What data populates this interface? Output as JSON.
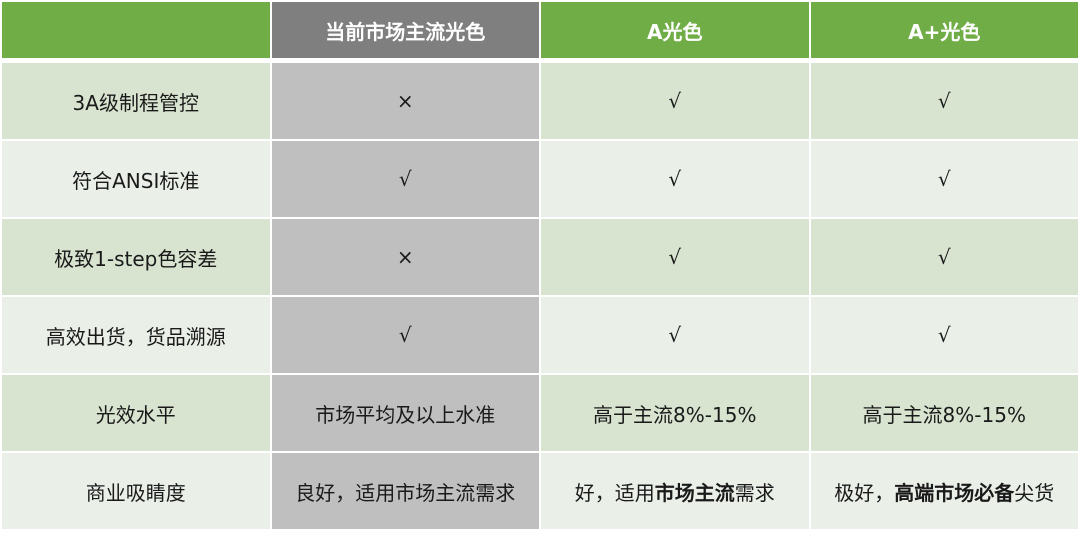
{
  "header": [
    "",
    "当前市场主流光色",
    "A光色",
    "A+光色"
  ],
  "colors": {
    "header_green": "#70AD47",
    "header_gray": "#7F7F7F",
    "row_odd": "#D8E4D0",
    "row_even": "#EAEFE8",
    "gray_column": "#BFBFBF"
  },
  "rows": [
    {
      "label": "3A级制程管控",
      "cells": [
        {
          "pre": "×",
          "bold": "",
          "post": ""
        },
        {
          "pre": "√",
          "bold": "",
          "post": ""
        },
        {
          "pre": "√",
          "bold": "",
          "post": ""
        }
      ]
    },
    {
      "label": "符合ANSI标准",
      "cells": [
        {
          "pre": "√",
          "bold": "",
          "post": ""
        },
        {
          "pre": "√",
          "bold": "",
          "post": ""
        },
        {
          "pre": "√",
          "bold": "",
          "post": ""
        }
      ]
    },
    {
      "label": "极致1-step色容差",
      "cells": [
        {
          "pre": "×",
          "bold": "",
          "post": ""
        },
        {
          "pre": "√",
          "bold": "",
          "post": ""
        },
        {
          "pre": "√",
          "bold": "",
          "post": ""
        }
      ]
    },
    {
      "label": "高效出货，货品溯源",
      "cells": [
        {
          "pre": "√",
          "bold": "",
          "post": ""
        },
        {
          "pre": "√",
          "bold": "",
          "post": ""
        },
        {
          "pre": "√",
          "bold": "",
          "post": ""
        }
      ]
    },
    {
      "label": "光效水平",
      "cells": [
        {
          "pre": "市场平均及以上水准",
          "bold": "",
          "post": ""
        },
        {
          "pre": "高于主流8%-15%",
          "bold": "",
          "post": ""
        },
        {
          "pre": "高于主流8%-15%",
          "bold": "",
          "post": ""
        }
      ]
    },
    {
      "label": "商业吸睛度",
      "cells": [
        {
          "pre": "良好，适用市场主流需求",
          "bold": "",
          "post": ""
        },
        {
          "pre": "好，适用",
          "bold": "市场主流",
          "post": "需求"
        },
        {
          "pre": "极好，",
          "bold": "高端市场必备",
          "post": "尖货"
        }
      ]
    }
  ]
}
